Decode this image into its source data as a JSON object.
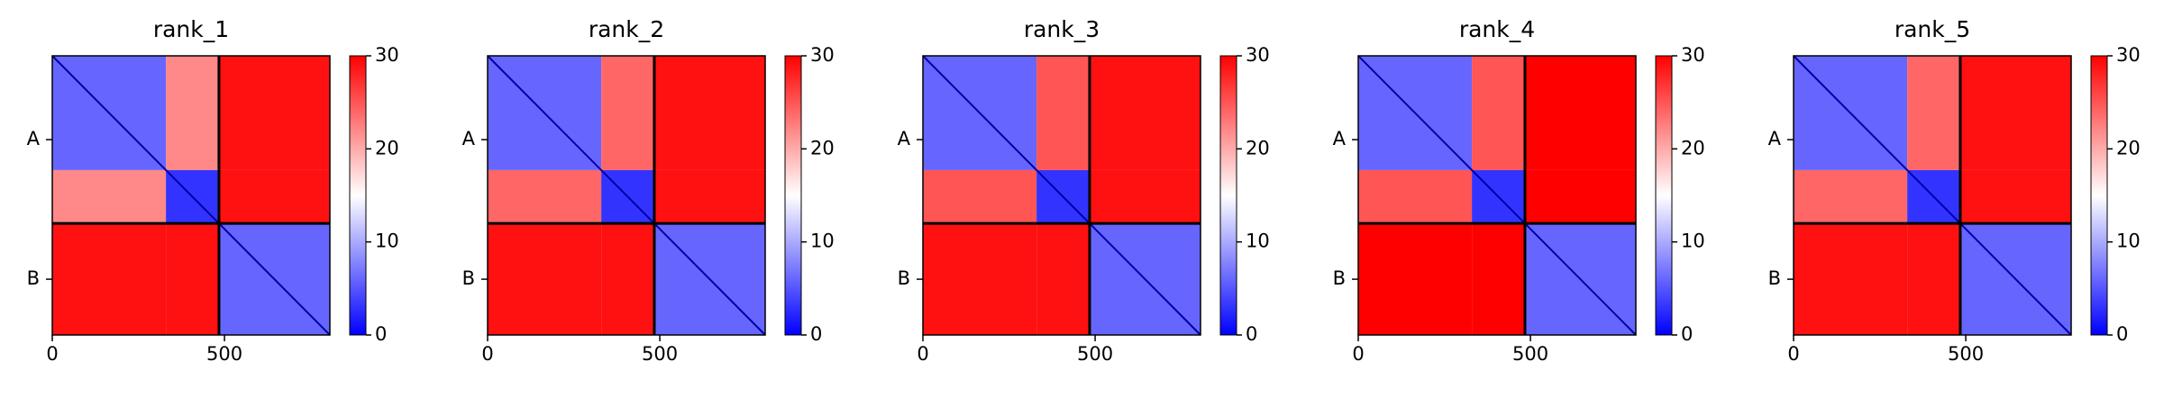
{
  "chart_data": [
    {
      "type": "heatmap",
      "title": "rank_1",
      "xlim": [
        0,
        806
      ],
      "xticks": [
        0,
        500
      ],
      "ylim": [
        806,
        0
      ],
      "yticks": [
        {
          "value": 242,
          "label": "A"
        },
        {
          "value": 645,
          "label": "B"
        }
      ],
      "chain_breaks": [
        484
      ],
      "segments": [
        0,
        330,
        484,
        806
      ],
      "values": [
        [
          6,
          22,
          29
        ],
        [
          22,
          3,
          29
        ],
        [
          29,
          29,
          6
        ]
      ],
      "clim": [
        0,
        30
      ],
      "cticks": [
        0,
        10,
        20,
        30
      ],
      "colormap": "bwr"
    },
    {
      "type": "heatmap",
      "title": "rank_2",
      "xlim": [
        0,
        806
      ],
      "xticks": [
        0,
        500
      ],
      "ylim": [
        806,
        0
      ],
      "yticks": [
        {
          "value": 242,
          "label": "A"
        },
        {
          "value": 645,
          "label": "B"
        }
      ],
      "chain_breaks": [
        484
      ],
      "segments": [
        0,
        330,
        484,
        806
      ],
      "values": [
        [
          6,
          24,
          29
        ],
        [
          24,
          3,
          29
        ],
        [
          29,
          29,
          6
        ]
      ],
      "clim": [
        0,
        30
      ],
      "cticks": [
        0,
        10,
        20,
        30
      ],
      "colormap": "bwr"
    },
    {
      "type": "heatmap",
      "title": "rank_3",
      "xlim": [
        0,
        806
      ],
      "xticks": [
        0,
        500
      ],
      "ylim": [
        806,
        0
      ],
      "yticks": [
        {
          "value": 242,
          "label": "A"
        },
        {
          "value": 645,
          "label": "B"
        }
      ],
      "chain_breaks": [
        484
      ],
      "segments": [
        0,
        330,
        484,
        806
      ],
      "values": [
        [
          6,
          25,
          29
        ],
        [
          25,
          3,
          29
        ],
        [
          29,
          29,
          6
        ]
      ],
      "clim": [
        0,
        30
      ],
      "cticks": [
        0,
        10,
        20,
        30
      ],
      "colormap": "bwr"
    },
    {
      "type": "heatmap",
      "title": "rank_4",
      "xlim": [
        0,
        806
      ],
      "xticks": [
        0,
        500
      ],
      "ylim": [
        806,
        0
      ],
      "yticks": [
        {
          "value": 242,
          "label": "A"
        },
        {
          "value": 645,
          "label": "B"
        }
      ],
      "chain_breaks": [
        484
      ],
      "segments": [
        0,
        330,
        484,
        806
      ],
      "values": [
        [
          6,
          25,
          30
        ],
        [
          25,
          3,
          30
        ],
        [
          30,
          30,
          6
        ]
      ],
      "clim": [
        0,
        30
      ],
      "cticks": [
        0,
        10,
        20,
        30
      ],
      "colormap": "bwr"
    },
    {
      "type": "heatmap",
      "title": "rank_5",
      "xlim": [
        0,
        806
      ],
      "xticks": [
        0,
        500
      ],
      "ylim": [
        806,
        0
      ],
      "yticks": [
        {
          "value": 242,
          "label": "A"
        },
        {
          "value": 645,
          "label": "B"
        }
      ],
      "chain_breaks": [
        484
      ],
      "segments": [
        0,
        330,
        484,
        806
      ],
      "values": [
        [
          6,
          24,
          29
        ],
        [
          24,
          3,
          29
        ],
        [
          29,
          29,
          6
        ]
      ],
      "clim": [
        0,
        30
      ],
      "cticks": [
        0,
        10,
        20,
        30
      ],
      "colormap": "bwr"
    }
  ]
}
